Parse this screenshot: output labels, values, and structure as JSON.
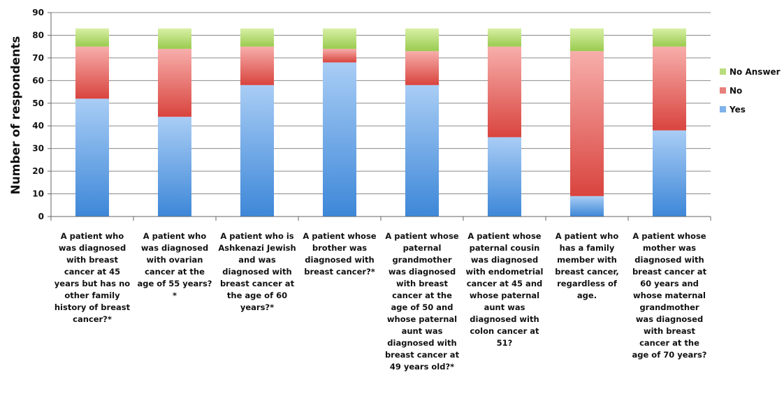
{
  "chart_data": {
    "type": "bar",
    "stacked": true,
    "ylabel": "Number of respondents",
    "xlabel": "",
    "ylim": [
      0,
      90
    ],
    "yticks": [
      "0",
      "10",
      "20",
      "30",
      "40",
      "50",
      "60",
      "70",
      "80",
      "90"
    ],
    "grid": true,
    "legend_position": "right",
    "categories": [
      "A patient who was diagnosed with breast cancer at 45 years but has no other family history of breast cancer?*",
      "A patient who was diagnosed with ovarian cancer at the age of 55 years? *",
      "A patient who is Ashkenazi Jewish and was diagnosed with breast cancer at the age of 60 years?*",
      "A patient whose brother was diagnosed with breast cancer?*",
      "A patient whose paternal grandmother was diagnosed with breast cancer at the age of 50 and whose paternal aunt was diagnosed with breast cancer at 49 years old?*",
      "A patient whose paternal cousin was diagnosed with endometrial cancer at 45 and whose paternal aunt was diagnosed with colon cancer at 51?",
      "A patient who has a family member with breast cancer, regardless of age.",
      "A patient whose mother was diagnosed with breast cancer at 60 years and whose maternal grandmother was diagnosed with breast cancer at the age of 70 years?"
    ],
    "series": [
      {
        "name": "Yes",
        "color": "#7fb2ea",
        "values": [
          52,
          44,
          58,
          68,
          58,
          35,
          9,
          38
        ]
      },
      {
        "name": "No",
        "color": "#e77f7b",
        "values": [
          23,
          30,
          17,
          6,
          15,
          40,
          64,
          37
        ]
      },
      {
        "name": "No Answer",
        "color": "#b9dd7d",
        "values": [
          8,
          9,
          8,
          9,
          10,
          8,
          10,
          8
        ]
      }
    ],
    "legend_order": [
      "No Answer",
      "No",
      "Yes"
    ]
  }
}
